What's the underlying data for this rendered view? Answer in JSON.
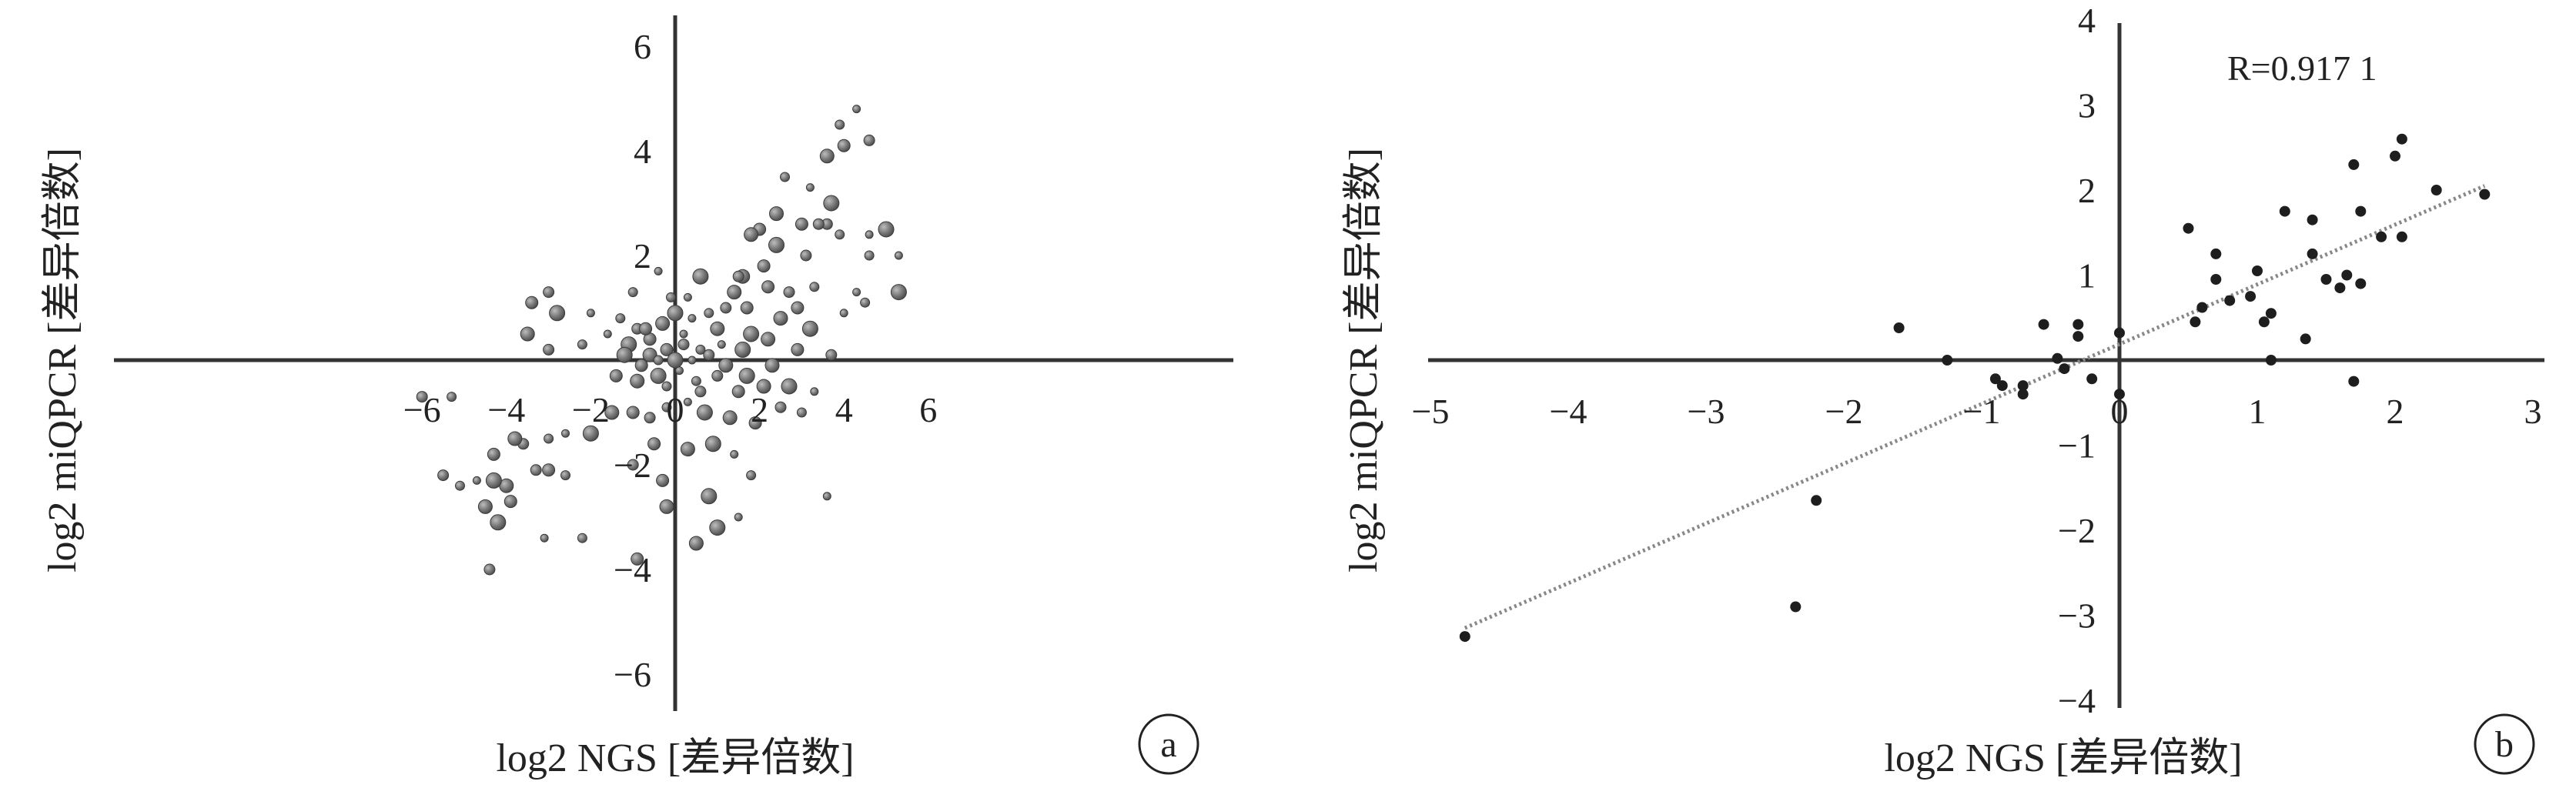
{
  "chart_data": [
    {
      "type": "scatter",
      "panel_label": "a",
      "title": "",
      "xlabel": "log2 NGS [差异倍数]",
      "ylabel": "log2 miQPCR [差异倍数]",
      "xlim": [
        -6.3,
        6.3
      ],
      "ylim": [
        -6.3,
        6.3
      ],
      "x_ticks": [
        "−6",
        "−4",
        "−2",
        "0",
        "2",
        "4",
        "6"
      ],
      "y_ticks": [
        "−6",
        "−4",
        "−2",
        "0",
        "2",
        "4",
        "6"
      ],
      "x_tick_values": [
        -6,
        -4,
        -2,
        0,
        2,
        4,
        6
      ],
      "y_tick_values": [
        -6,
        -4,
        -2,
        0,
        2,
        4,
        6
      ],
      "marker": "gray spheres, varying sizes",
      "marker_color": "#7a7a7a",
      "points": [
        {
          "x": 4.3,
          "y": 4.8
        },
        {
          "x": 3.9,
          "y": 4.5
        },
        {
          "x": 4.6,
          "y": 4.2
        },
        {
          "x": 4.0,
          "y": 4.1
        },
        {
          "x": 3.6,
          "y": 3.9
        },
        {
          "x": 3.7,
          "y": 3.0
        },
        {
          "x": 3.2,
          "y": 3.3
        },
        {
          "x": 2.6,
          "y": 3.5
        },
        {
          "x": 3.6,
          "y": 2.6
        },
        {
          "x": 3.0,
          "y": 2.6
        },
        {
          "x": 2.4,
          "y": 2.8
        },
        {
          "x": 5.0,
          "y": 2.5
        },
        {
          "x": 4.6,
          "y": 2.4
        },
        {
          "x": 3.9,
          "y": 2.4
        },
        {
          "x": 3.4,
          "y": 2.6
        },
        {
          "x": 2.0,
          "y": 2.5
        },
        {
          "x": 1.8,
          "y": 2.4
        },
        {
          "x": 2.4,
          "y": 2.2
        },
        {
          "x": 5.3,
          "y": 2.0
        },
        {
          "x": 4.6,
          "y": 2.0
        },
        {
          "x": 3.1,
          "y": 2.0
        },
        {
          "x": 2.1,
          "y": 1.8
        },
        {
          "x": 1.6,
          "y": 1.6
        },
        {
          "x": 5.3,
          "y": 1.3
        },
        {
          "x": 4.3,
          "y": 1.3
        },
        {
          "x": 3.3,
          "y": 1.4
        },
        {
          "x": 2.7,
          "y": 1.3
        },
        {
          "x": 2.2,
          "y": 1.4
        },
        {
          "x": 1.4,
          "y": 1.3
        },
        {
          "x": 0.6,
          "y": 1.6
        },
        {
          "x": -0.4,
          "y": 1.7
        },
        {
          "x": -1.0,
          "y": 1.3
        },
        {
          "x": -3.0,
          "y": 1.3
        },
        {
          "x": -3.4,
          "y": 1.1
        },
        {
          "x": -3.5,
          "y": 0.5
        },
        {
          "x": -2.8,
          "y": 0.9
        },
        {
          "x": -2.0,
          "y": 0.9
        },
        {
          "x": -1.3,
          "y": 0.8
        },
        {
          "x": -0.9,
          "y": 0.6
        },
        {
          "x": -0.6,
          "y": 0.4
        },
        {
          "x": -0.3,
          "y": 0.7
        },
        {
          "x": 0.0,
          "y": 0.9
        },
        {
          "x": 0.4,
          "y": 0.8
        },
        {
          "x": 0.8,
          "y": 0.9
        },
        {
          "x": 1.2,
          "y": 1.0
        },
        {
          "x": 1.7,
          "y": 1.0
        },
        {
          "x": 2.5,
          "y": 0.8
        },
        {
          "x": 3.2,
          "y": 0.6
        },
        {
          "x": 4.0,
          "y": 0.9
        },
        {
          "x": 4.5,
          "y": 1.1
        },
        {
          "x": 3.7,
          "y": 0.1
        },
        {
          "x": 2.9,
          "y": 0.2
        },
        {
          "x": 2.2,
          "y": 0.4
        },
        {
          "x": 1.6,
          "y": 0.2
        },
        {
          "x": 1.1,
          "y": 0.3
        },
        {
          "x": 0.6,
          "y": 0.2
        },
        {
          "x": 0.2,
          "y": 0.3
        },
        {
          "x": -0.2,
          "y": 0.2
        },
        {
          "x": -0.6,
          "y": 0.1
        },
        {
          "x": -1.1,
          "y": 0.3
        },
        {
          "x": -1.6,
          "y": 0.5
        },
        {
          "x": -2.2,
          "y": 0.3
        },
        {
          "x": -3.0,
          "y": 0.2
        },
        {
          "x": -1.4,
          "y": -0.3
        },
        {
          "x": -0.9,
          "y": -0.4
        },
        {
          "x": -0.4,
          "y": -0.3
        },
        {
          "x": 0.1,
          "y": -0.2
        },
        {
          "x": 0.5,
          "y": -0.4
        },
        {
          "x": 1.0,
          "y": -0.3
        },
        {
          "x": 1.5,
          "y": -0.6
        },
        {
          "x": 2.1,
          "y": -0.5
        },
        {
          "x": 2.7,
          "y": -0.5
        },
        {
          "x": 3.3,
          "y": -0.6
        },
        {
          "x": 3.0,
          "y": -1.0
        },
        {
          "x": 2.5,
          "y": -0.9
        },
        {
          "x": 1.9,
          "y": -1.2
        },
        {
          "x": 1.3,
          "y": -1.1
        },
        {
          "x": 0.7,
          "y": -1.0
        },
        {
          "x": 0.3,
          "y": -0.8
        },
        {
          "x": -0.2,
          "y": -0.9
        },
        {
          "x": -0.6,
          "y": -1.1
        },
        {
          "x": -1.0,
          "y": -1.0
        },
        {
          "x": -1.5,
          "y": -1.0
        },
        {
          "x": -2.0,
          "y": -1.4
        },
        {
          "x": -2.6,
          "y": -1.4
        },
        {
          "x": -3.0,
          "y": -1.5
        },
        {
          "x": -3.6,
          "y": -1.6
        },
        {
          "x": -0.5,
          "y": -1.6
        },
        {
          "x": 0.3,
          "y": -1.7
        },
        {
          "x": 0.9,
          "y": -1.6
        },
        {
          "x": 1.4,
          "y": -1.8
        },
        {
          "x": 1.8,
          "y": -2.2
        },
        {
          "x": -1.0,
          "y": -2.0
        },
        {
          "x": -0.3,
          "y": -2.3
        },
        {
          "x": -0.2,
          "y": -2.8
        },
        {
          "x": 0.8,
          "y": -2.6
        },
        {
          "x": 1.5,
          "y": -3.0
        },
        {
          "x": -2.6,
          "y": -2.2
        },
        {
          "x": -3.3,
          "y": -2.1
        },
        {
          "x": -3.0,
          "y": -2.1
        },
        {
          "x": -4.0,
          "y": -2.4
        },
        {
          "x": -4.3,
          "y": -2.3
        },
        {
          "x": -4.7,
          "y": -2.3
        },
        {
          "x": -5.1,
          "y": -2.4
        },
        {
          "x": -5.5,
          "y": -2.2
        },
        {
          "x": -3.9,
          "y": -2.7
        },
        {
          "x": -4.5,
          "y": -2.8
        },
        {
          "x": -4.2,
          "y": -3.1
        },
        {
          "x": -3.1,
          "y": -3.4
        },
        {
          "x": -2.2,
          "y": -3.4
        },
        {
          "x": -4.4,
          "y": -4.0
        },
        {
          "x": -0.9,
          "y": -3.8
        },
        {
          "x": 0.5,
          "y": -3.5
        },
        {
          "x": 1.0,
          "y": -3.2
        },
        {
          "x": 3.6,
          "y": -2.6
        },
        {
          "x": -5.3,
          "y": -0.7
        },
        {
          "x": -6.0,
          "y": -0.7
        },
        {
          "x": -4.3,
          "y": -1.8
        },
        {
          "x": -3.8,
          "y": -1.5
        },
        {
          "x": 0.0,
          "y": 0.0
        },
        {
          "x": 0.4,
          "y": 0.0
        },
        {
          "x": -0.4,
          "y": 0.0
        },
        {
          "x": 0.8,
          "y": 0.1
        },
        {
          "x": -0.8,
          "y": -0.1
        },
        {
          "x": 1.2,
          "y": -0.1
        },
        {
          "x": -1.2,
          "y": 0.1
        },
        {
          "x": 0.2,
          "y": 0.5
        },
        {
          "x": -0.2,
          "y": -0.5
        },
        {
          "x": 0.6,
          "y": -0.6
        },
        {
          "x": -0.7,
          "y": 0.6
        },
        {
          "x": 1.0,
          "y": 0.6
        },
        {
          "x": 1.8,
          "y": 0.5
        },
        {
          "x": 0.3,
          "y": 1.2
        },
        {
          "x": -0.1,
          "y": 1.2
        },
        {
          "x": 1.5,
          "y": 1.6
        },
        {
          "x": 2.9,
          "y": 1.0
        },
        {
          "x": 2.3,
          "y": -0.1
        },
        {
          "x": 1.7,
          "y": -0.3
        }
      ]
    },
    {
      "type": "scatter",
      "panel_label": "b",
      "title": "",
      "xlabel": "log2 NGS [差异倍数]",
      "ylabel": "log2 miQPCR [差异倍数]",
      "annotation": "R=0.917 1",
      "xlim": [
        -5.1,
        3.0
      ],
      "ylim": [
        -4.1,
        4.1
      ],
      "x_ticks": [
        "−5",
        "−4",
        "−3",
        "−2",
        "−1",
        "0",
        "1",
        "2",
        "3"
      ],
      "y_ticks": [
        "−4",
        "−3",
        "−2",
        "−1",
        "0",
        "1",
        "2",
        "3",
        "4"
      ],
      "x_tick_values": [
        -5,
        -4,
        -3,
        -2,
        -1,
        0,
        1,
        2,
        3
      ],
      "y_tick_values": [
        -4,
        -3,
        -2,
        -1,
        0,
        1,
        2,
        3,
        4
      ],
      "marker": "dark dots",
      "marker_color": "#1e1e1e",
      "trendline": {
        "from": [
          -4.75,
          -3.15
        ],
        "to": [
          2.65,
          2.05
        ],
        "style": "dotted gray"
      },
      "points": [
        {
          "x": -4.75,
          "y": -3.25
        },
        {
          "x": -2.35,
          "y": -2.9
        },
        {
          "x": -2.2,
          "y": -1.65
        },
        {
          "x": -1.6,
          "y": 0.38
        },
        {
          "x": -1.25,
          "y": 0.0
        },
        {
          "x": -0.9,
          "y": -0.22
        },
        {
          "x": -0.85,
          "y": -0.3
        },
        {
          "x": -0.7,
          "y": -0.4
        },
        {
          "x": -0.7,
          "y": -0.3
        },
        {
          "x": -0.55,
          "y": 0.42
        },
        {
          "x": -0.45,
          "y": 0.02
        },
        {
          "x": -0.4,
          "y": -0.1
        },
        {
          "x": -0.3,
          "y": 0.42
        },
        {
          "x": -0.3,
          "y": 0.28
        },
        {
          "x": -0.2,
          "y": -0.22
        },
        {
          "x": 0.0,
          "y": 0.32
        },
        {
          "x": 0.0,
          "y": -0.4
        },
        {
          "x": 0.5,
          "y": 1.55
        },
        {
          "x": 0.55,
          "y": 0.45
        },
        {
          "x": 0.6,
          "y": 0.62
        },
        {
          "x": 0.7,
          "y": 0.95
        },
        {
          "x": 0.7,
          "y": 1.25
        },
        {
          "x": 0.8,
          "y": 0.7
        },
        {
          "x": 0.95,
          "y": 0.75
        },
        {
          "x": 1.0,
          "y": 1.05
        },
        {
          "x": 1.05,
          "y": 0.45
        },
        {
          "x": 1.1,
          "y": 0.55
        },
        {
          "x": 1.1,
          "y": 0.0
        },
        {
          "x": 1.2,
          "y": 1.75
        },
        {
          "x": 1.35,
          "y": 0.25
        },
        {
          "x": 1.4,
          "y": 1.25
        },
        {
          "x": 1.4,
          "y": 1.65
        },
        {
          "x": 1.5,
          "y": 0.95
        },
        {
          "x": 1.6,
          "y": 0.85
        },
        {
          "x": 1.65,
          "y": 1.0
        },
        {
          "x": 1.7,
          "y": 2.3
        },
        {
          "x": 1.7,
          "y": -0.25
        },
        {
          "x": 1.75,
          "y": 0.9
        },
        {
          "x": 1.75,
          "y": 1.75
        },
        {
          "x": 1.9,
          "y": 1.45
        },
        {
          "x": 2.0,
          "y": 2.4
        },
        {
          "x": 2.05,
          "y": 1.45
        },
        {
          "x": 2.05,
          "y": 2.6
        },
        {
          "x": 2.3,
          "y": 2.0
        },
        {
          "x": 2.65,
          "y": 1.95
        }
      ]
    }
  ]
}
